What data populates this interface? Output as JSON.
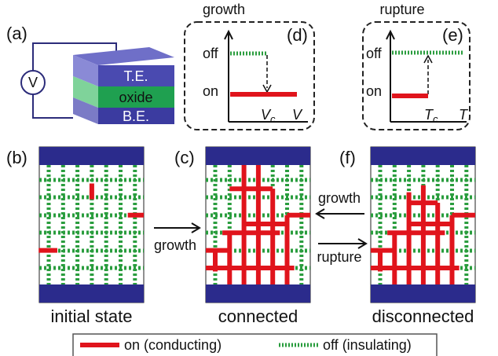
{
  "panel_a": {
    "label": "(a)",
    "source": "V",
    "layers": [
      "T.E.",
      "oxide",
      "B.E."
    ]
  },
  "panel_d": {
    "title": "growth",
    "label": "(d)",
    "y_labels": [
      "off",
      "on"
    ],
    "x_tick": {
      "symbol": "V",
      "subscript": "c"
    },
    "x_axis": "V"
  },
  "panel_e": {
    "title": "rupture",
    "label": "(e)",
    "y_labels": [
      "off",
      "on"
    ],
    "x_tick": {
      "symbol": "T",
      "subscript": "c"
    },
    "x_axis": "T"
  },
  "lattices": [
    {
      "label": "(b)",
      "caption": "initial state"
    },
    {
      "label": "(c)",
      "caption": "connected"
    },
    {
      "label": "(f)",
      "caption": "disconnected"
    }
  ],
  "arrows": [
    "growth",
    "growth",
    "rupture"
  ],
  "legend": [
    "on (conducting)",
    "off (insulating)"
  ]
}
